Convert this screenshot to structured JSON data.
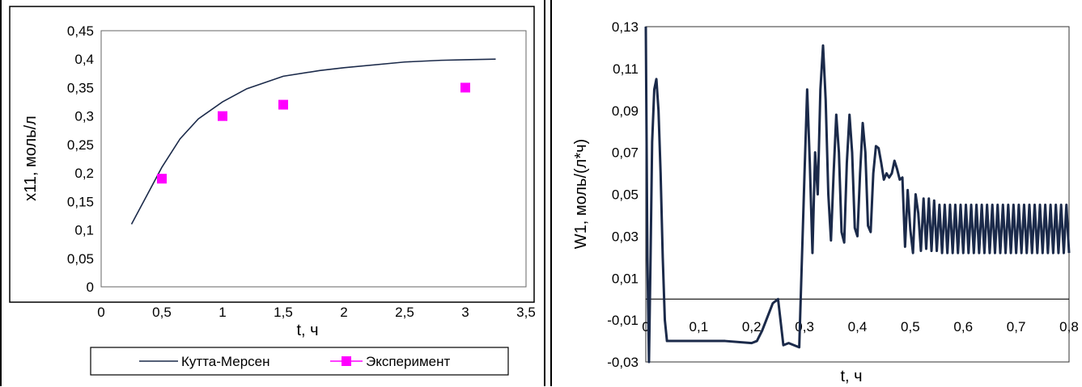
{
  "chart_data": [
    {
      "type": "line",
      "xlabel": "t, ч",
      "ylabel": "x11, моль/л",
      "xlim": [
        0,
        3.5
      ],
      "ylim": [
        0,
        0.45
      ],
      "xticks": [
        "0",
        "0,5",
        "1",
        "1,5",
        "2",
        "2,5",
        "3",
        "3,5"
      ],
      "yticks": [
        "0",
        "0,05",
        "0,1",
        "0,15",
        "0,2",
        "0,25",
        "0,3",
        "0,35",
        "0,4",
        "0,45"
      ],
      "legend_position": "bottom",
      "series": [
        {
          "name": "Кутта-Мерсен",
          "kind": "line",
          "color": "#1b2a4a",
          "x": [
            0.25,
            0.35,
            0.5,
            0.65,
            0.8,
            1.0,
            1.2,
            1.5,
            1.8,
            2.0,
            2.5,
            2.8,
            3.0,
            3.25
          ],
          "y": [
            0.11,
            0.15,
            0.21,
            0.26,
            0.295,
            0.325,
            0.348,
            0.37,
            0.38,
            0.385,
            0.395,
            0.398,
            0.399,
            0.4
          ]
        },
        {
          "name": "Эксперимент",
          "kind": "scatter",
          "color": "#ff00ff",
          "x": [
            0.5,
            1.0,
            1.5,
            3.0
          ],
          "y": [
            0.19,
            0.3,
            0.32,
            0.35
          ]
        }
      ]
    },
    {
      "type": "line",
      "xlabel": "t, ч",
      "ylabel": "W1, моль/(л*ч)",
      "xlim": [
        0,
        0.8
      ],
      "ylim": [
        -0.03,
        0.13
      ],
      "xticks": [
        "0",
        "0,1",
        "0,2",
        "0,3",
        "0,4",
        "0,5",
        "0,6",
        "0,7",
        "0,8"
      ],
      "yticks": [
        "-0,03",
        "-0,01",
        "0,01",
        "0,03",
        "0,05",
        "0,07",
        "0,09",
        "0,11",
        "0,13"
      ],
      "zero_line": true,
      "series": [
        {
          "name": "",
          "color": "#1b2a4a",
          "x": [
            0,
            0.003,
            0.006,
            0.009,
            0.012,
            0.016,
            0.02,
            0.024,
            0.028,
            0.032,
            0.036,
            0.04,
            0.05,
            0.1,
            0.15,
            0.2,
            0.21,
            0.22,
            0.24,
            0.25,
            0.26,
            0.27,
            0.28,
            0.29,
            0.3,
            0.305,
            0.31,
            0.315,
            0.32,
            0.325,
            0.33,
            0.335,
            0.34,
            0.345,
            0.35,
            0.355,
            0.36,
            0.365,
            0.37,
            0.375,
            0.38,
            0.385,
            0.39,
            0.395,
            0.4,
            0.405,
            0.41,
            0.415,
            0.42,
            0.425,
            0.43,
            0.435,
            0.44,
            0.445,
            0.45,
            0.455,
            0.46,
            0.465,
            0.47,
            0.475,
            0.48,
            0.485,
            0.49,
            0.495,
            0.5,
            0.505,
            0.51,
            0.515,
            0.52,
            0.525,
            0.53,
            0.535,
            0.54,
            0.545,
            0.55,
            0.555,
            0.56,
            0.565,
            0.57,
            0.575,
            0.58,
            0.585,
            0.59,
            0.595,
            0.6,
            0.605,
            0.61,
            0.615,
            0.62,
            0.625,
            0.63,
            0.635,
            0.64,
            0.645,
            0.65,
            0.655,
            0.66,
            0.665,
            0.67,
            0.675,
            0.68,
            0.685,
            0.69,
            0.695,
            0.7,
            0.705,
            0.71,
            0.715,
            0.72,
            0.725,
            0.73,
            0.735,
            0.74,
            0.745,
            0.75,
            0.755,
            0.76,
            0.765,
            0.77,
            0.775,
            0.78,
            0.785,
            0.79,
            0.795,
            0.8
          ],
          "y": [
            0.13,
            0.02,
            -0.03,
            0.02,
            0.075,
            0.1,
            0.105,
            0.09,
            0.06,
            0.02,
            -0.01,
            -0.02,
            -0.02,
            -0.02,
            -0.02,
            -0.021,
            -0.02,
            -0.015,
            -0.002,
            0.0,
            -0.022,
            -0.021,
            -0.022,
            -0.023,
            0.06,
            0.1,
            0.065,
            0.022,
            0.07,
            0.05,
            0.1,
            0.121,
            0.095,
            0.05,
            0.028,
            0.06,
            0.088,
            0.07,
            0.032,
            0.027,
            0.065,
            0.088,
            0.07,
            0.034,
            0.03,
            0.06,
            0.084,
            0.07,
            0.035,
            0.032,
            0.06,
            0.073,
            0.072,
            0.065,
            0.057,
            0.06,
            0.058,
            0.06,
            0.066,
            0.062,
            0.057,
            0.058,
            0.025,
            0.052,
            0.033,
            0.022,
            0.05,
            0.041,
            0.023,
            0.048,
            0.024,
            0.048,
            0.023,
            0.047,
            0.023,
            0.045,
            0.022,
            0.045,
            0.022,
            0.045,
            0.022,
            0.045,
            0.022,
            0.045,
            0.022,
            0.045,
            0.022,
            0.045,
            0.022,
            0.045,
            0.022,
            0.045,
            0.022,
            0.045,
            0.022,
            0.045,
            0.022,
            0.045,
            0.022,
            0.045,
            0.022,
            0.045,
            0.022,
            0.045,
            0.022,
            0.045,
            0.022,
            0.045,
            0.022,
            0.045,
            0.022,
            0.045,
            0.022,
            0.045,
            0.022,
            0.045,
            0.022,
            0.045,
            0.022,
            0.045,
            0.022,
            0.045,
            0.022,
            0.045,
            0.022
          ]
        }
      ]
    }
  ]
}
